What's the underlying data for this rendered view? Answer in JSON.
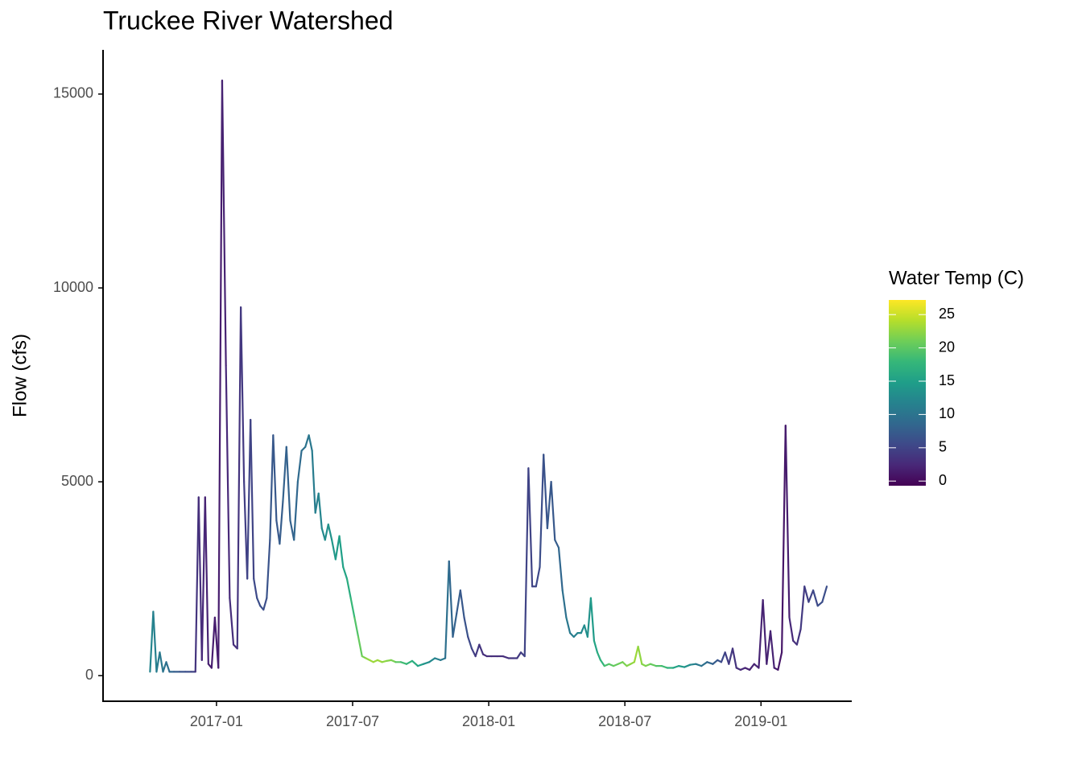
{
  "chart_data": {
    "type": "line",
    "title": "Truckee River Watershed",
    "y_label": "Flow (cfs)",
    "x": [
      "2016-10",
      "2016-11",
      "2016-12",
      "2017-01",
      "2017-02",
      "2017-03",
      "2017-04",
      "2017-05",
      "2017-06",
      "2017-07",
      "2017-08",
      "2017-09",
      "2017-10",
      "2017-11",
      "2017-12",
      "2018-01",
      "2018-02",
      "2018-03",
      "2018-04",
      "2018-05",
      "2018-06",
      "2018-07",
      "2018-08",
      "2018-09",
      "2018-10",
      "2018-11",
      "2018-12",
      "2019-01",
      "2019-02",
      "2019-03"
    ],
    "values": [
      [
        100,
        1650,
        100,
        600,
        100,
        350,
        100
      ],
      [
        100,
        100,
        100,
        100
      ],
      [
        100,
        4600,
        400,
        4600,
        300,
        200,
        1500
      ],
      [
        200,
        15350,
        8000,
        2000,
        800,
        700
      ],
      [
        9500,
        5000,
        2500,
        6600,
        2500,
        2000,
        1800
      ],
      [
        1700,
        2000,
        3500,
        6200,
        4000,
        3400,
        4500
      ],
      [
        5900,
        4000,
        3500,
        5000,
        5800,
        5900
      ],
      [
        6200,
        5800,
        4200,
        4700,
        3800,
        3500,
        3900
      ],
      [
        3500,
        3000,
        3600,
        2800,
        2500,
        2000
      ],
      [
        1500,
        1000,
        500,
        450,
        400,
        350
      ],
      [
        400,
        350,
        380,
        400,
        350
      ],
      [
        350,
        300,
        380,
        250
      ],
      [
        300,
        350,
        450,
        400
      ],
      [
        450,
        2950,
        1000,
        1600,
        2200,
        1500
      ],
      [
        1000,
        700,
        500,
        800,
        550,
        500
      ],
      [
        500,
        500,
        500,
        450
      ],
      [
        450,
        450,
        600,
        500,
        5350,
        2300
      ],
      [
        2300,
        2800,
        5700,
        3800,
        5000,
        3500
      ],
      [
        3300,
        2200,
        1500,
        1100,
        1000,
        1100
      ],
      [
        1100,
        1300,
        1000,
        2000,
        900,
        600,
        400
      ],
      [
        250,
        300,
        250,
        300,
        350
      ],
      [
        250,
        300,
        350,
        750,
        300,
        250
      ],
      [
        300,
        250,
        250,
        200
      ],
      [
        200,
        250,
        220,
        280
      ],
      [
        300,
        250,
        350,
        300
      ],
      [
        400,
        350,
        600,
        300,
        700,
        200
      ],
      [
        150,
        200,
        150,
        300,
        200
      ],
      [
        1950,
        300,
        1150,
        200,
        150,
        600
      ],
      [
        6450,
        1500,
        900,
        800,
        1200,
        2300
      ],
      [
        1900,
        2200,
        1800,
        1900,
        2300
      ]
    ],
    "water_temp": [
      [
        12,
        12,
        11,
        11,
        10,
        10,
        9
      ],
      [
        8,
        7,
        6,
        6
      ],
      [
        4,
        3,
        3,
        2,
        2,
        1,
        2
      ],
      [
        1,
        2,
        2,
        3,
        3,
        3
      ],
      [
        4,
        4,
        5,
        5,
        5,
        6,
        6
      ],
      [
        6,
        6,
        7,
        7,
        7,
        7,
        8
      ],
      [
        8,
        8,
        8,
        9,
        9,
        10
      ],
      [
        10,
        11,
        11,
        12,
        12,
        13,
        13
      ],
      [
        14,
        14,
        15,
        15,
        16,
        17
      ],
      [
        19,
        20,
        21,
        22,
        23,
        23
      ],
      [
        23,
        23,
        22,
        22,
        21
      ],
      [
        19,
        18,
        17,
        16
      ],
      [
        14,
        13,
        12,
        11
      ],
      [
        10,
        9,
        8,
        8,
        7,
        7
      ],
      [
        6,
        5,
        4,
        4,
        3,
        3
      ],
      [
        3,
        3,
        3,
        3
      ],
      [
        4,
        4,
        4,
        5,
        5,
        5
      ],
      [
        5,
        6,
        6,
        7,
        7,
        7
      ],
      [
        8,
        9,
        10,
        11,
        11,
        12
      ],
      [
        12,
        13,
        13,
        14,
        15,
        16,
        17
      ],
      [
        18,
        20,
        20,
        21,
        21
      ],
      [
        22,
        22,
        23,
        23,
        22,
        22
      ],
      [
        21,
        20,
        19,
        18
      ],
      [
        16,
        15,
        14,
        13
      ],
      [
        11,
        10,
        9,
        8
      ],
      [
        7,
        6,
        5,
        4,
        4,
        3
      ],
      [
        3,
        2,
        2,
        2,
        2
      ],
      [
        2,
        2,
        2,
        2,
        1,
        1
      ],
      [
        1,
        2,
        3,
        3,
        4,
        4
      ],
      [
        5,
        5,
        6,
        6,
        6
      ]
    ],
    "xlim": [
      "2016-08",
      "2019-05"
    ],
    "xticks": [
      "2017-01",
      "2017-07",
      "2018-01",
      "2018-07",
      "2019-01"
    ],
    "ylim": [
      -660,
      16140
    ],
    "yticks": [
      0,
      5000,
      10000,
      15000
    ],
    "legend": {
      "title": "Water Temp (C)",
      "clim": [
        -0.7,
        27.2
      ],
      "ticks": [
        0,
        5,
        10,
        15,
        20,
        25
      ],
      "position": "right"
    },
    "colorscale": [
      "#440154",
      "#482878",
      "#3e4989",
      "#31688e",
      "#26828e",
      "#1f9e89",
      "#35b779",
      "#6ece58",
      "#b5de2b",
      "#fde725"
    ]
  }
}
